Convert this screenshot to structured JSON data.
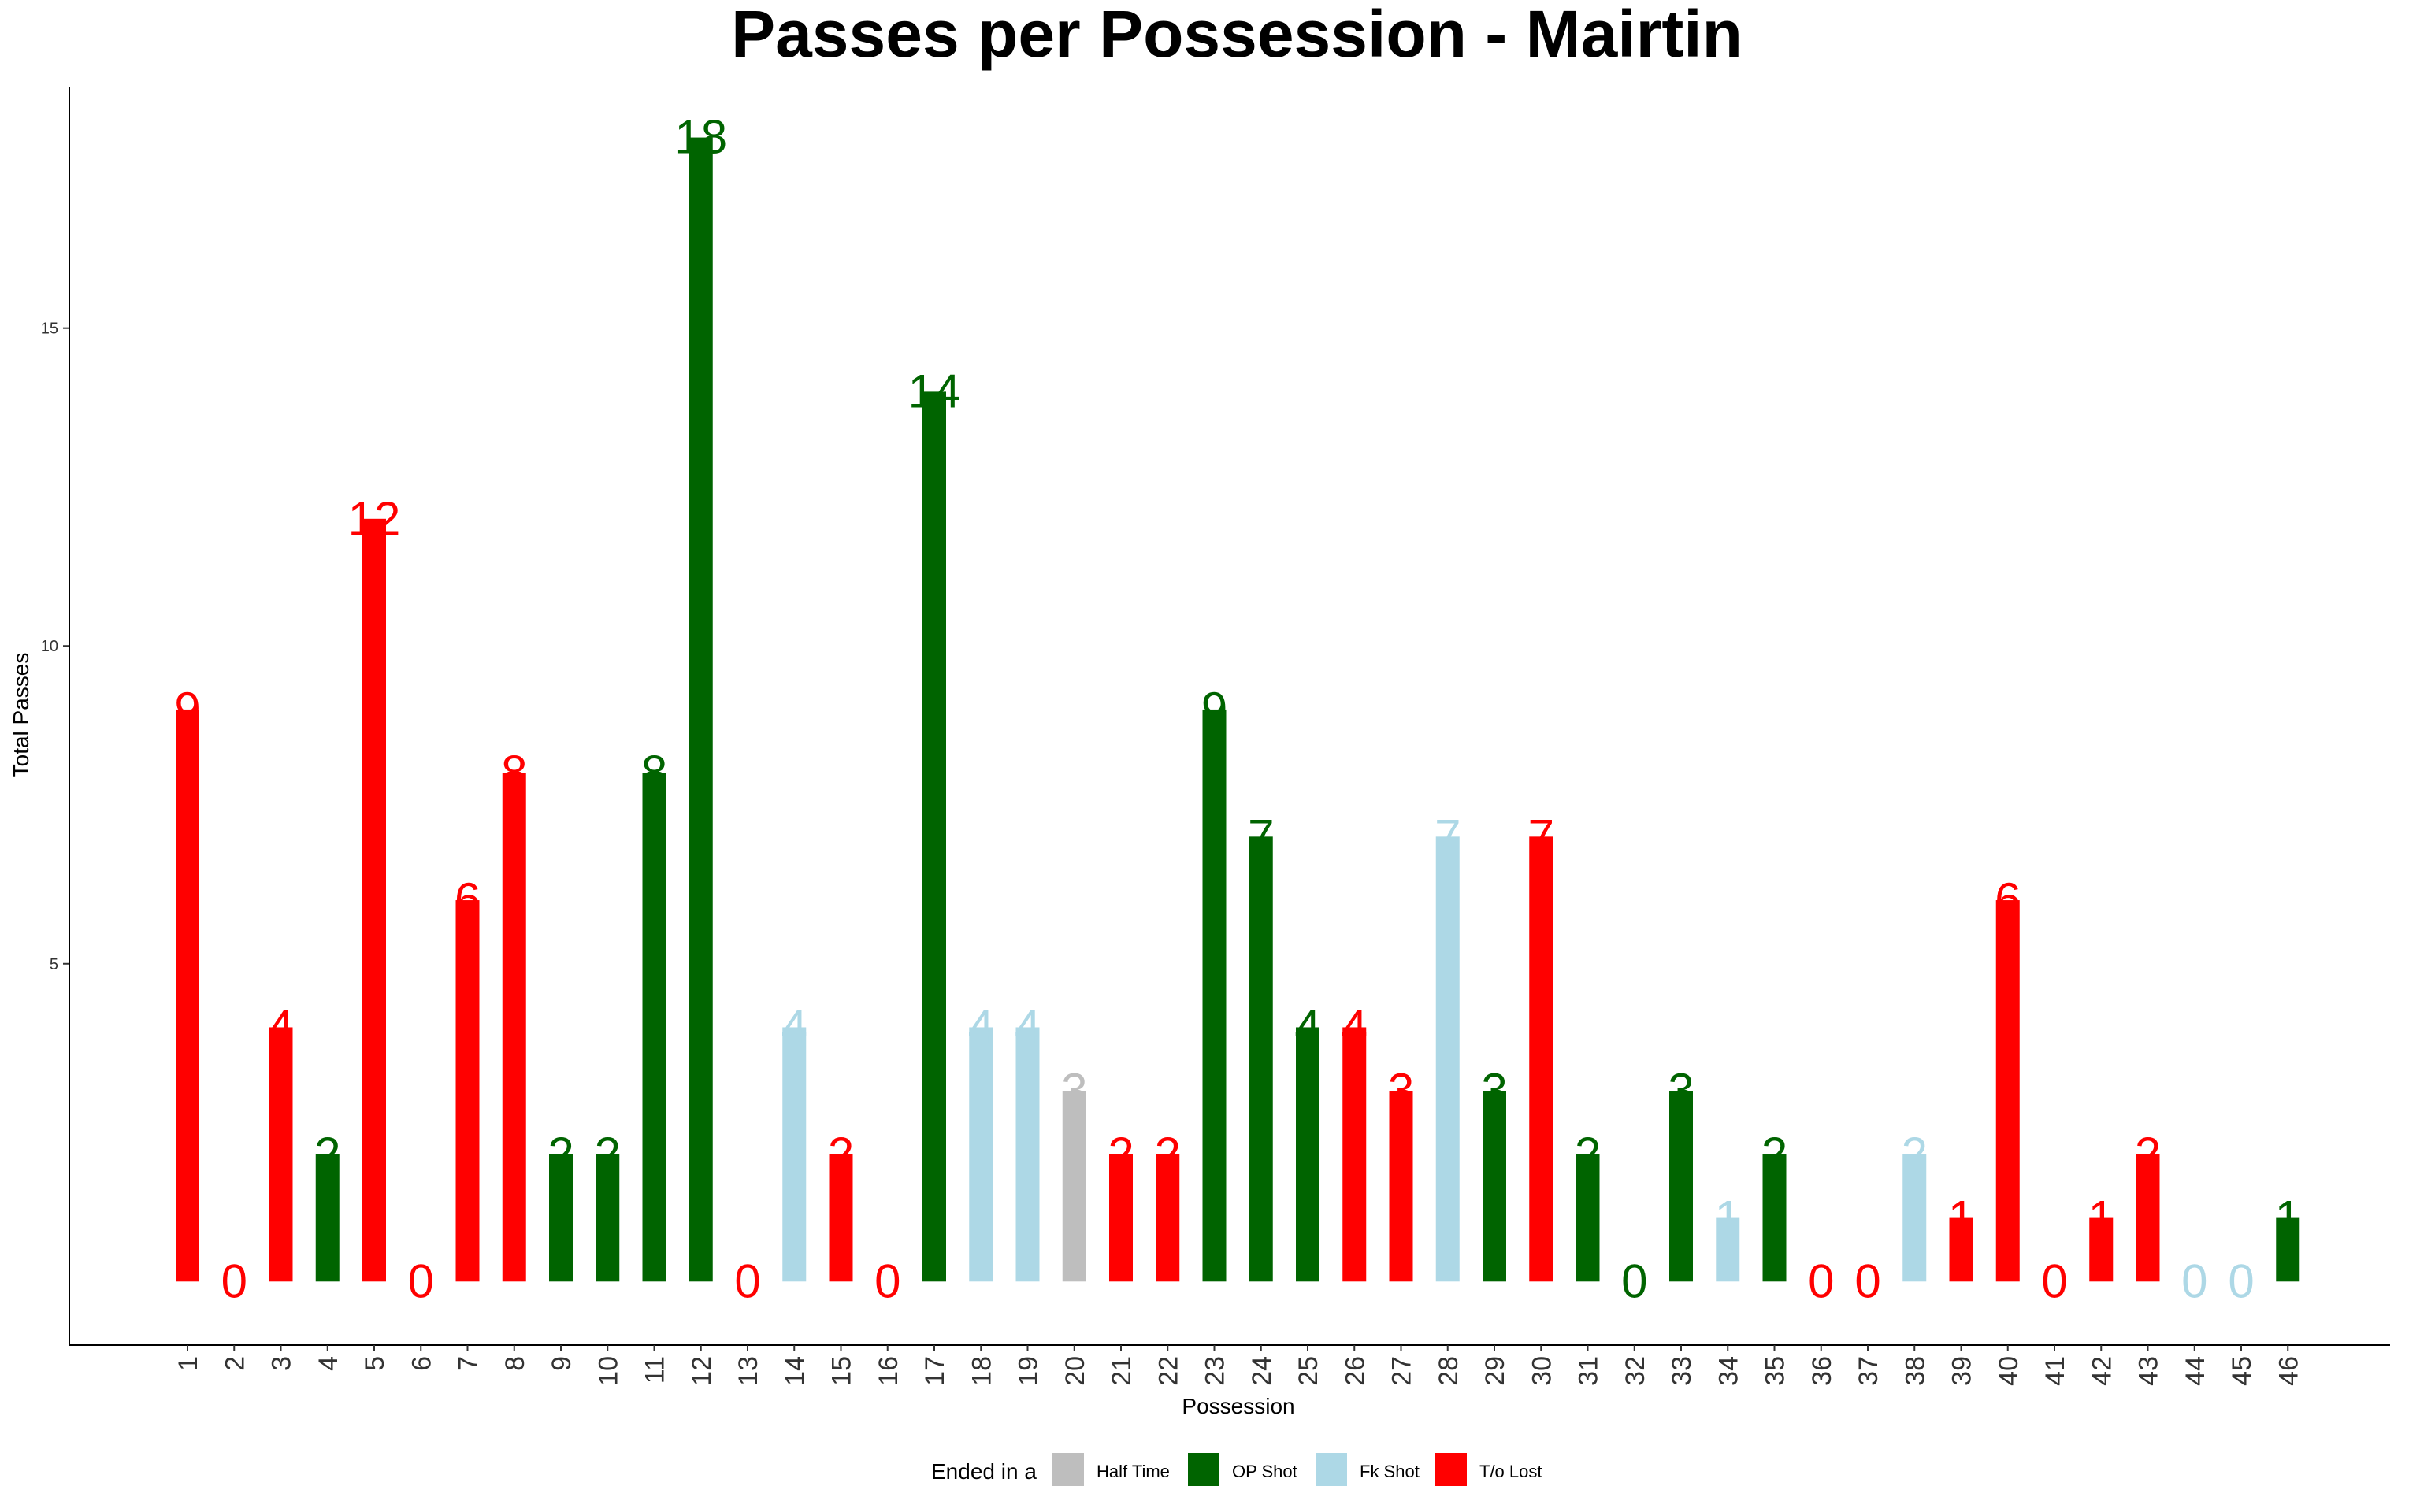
{
  "chart_data": {
    "type": "bar",
    "title": "Passes per Possession - Mairtin",
    "xlabel": "Possession",
    "ylabel": "Total Passes",
    "ylim": [
      -1.0,
      18.8
    ],
    "yticks": [
      5,
      10,
      15
    ],
    "grid": false,
    "legend_position": "bottom",
    "legend_title": "Ended in a",
    "legend": [
      {
        "name": "Half Time",
        "color": "#BEBEBE"
      },
      {
        "name": "OP Shot",
        "color": "#006400"
      },
      {
        "name": "Fk Shot",
        "color": "#ADD8E6"
      },
      {
        "name": "T/o Lost",
        "color": "#FF0000"
      }
    ],
    "categories": [
      "1",
      "2",
      "3",
      "4",
      "5",
      "6",
      "7",
      "8",
      "9",
      "10",
      "11",
      "12",
      "13",
      "14",
      "15",
      "16",
      "17",
      "18",
      "19",
      "20",
      "21",
      "22",
      "23",
      "24",
      "25",
      "26",
      "27",
      "28",
      "29",
      "30",
      "31",
      "32",
      "33",
      "34",
      "35",
      "36",
      "37",
      "38",
      "39",
      "40",
      "41",
      "42",
      "43",
      "44",
      "45",
      "46"
    ],
    "values": [
      9,
      0,
      4,
      2,
      12,
      0,
      6,
      8,
      2,
      2,
      8,
      18,
      0,
      4,
      2,
      0,
      14,
      4,
      4,
      3,
      2,
      2,
      9,
      7,
      4,
      4,
      3,
      7,
      3,
      7,
      2,
      0,
      3,
      1,
      2,
      0,
      0,
      2,
      1,
      6,
      0,
      1,
      2,
      0,
      0,
      1
    ],
    "outcomes": [
      "T/o Lost",
      "T/o Lost",
      "T/o Lost",
      "OP Shot",
      "T/o Lost",
      "T/o Lost",
      "T/o Lost",
      "T/o Lost",
      "OP Shot",
      "OP Shot",
      "OP Shot",
      "OP Shot",
      "T/o Lost",
      "Fk Shot",
      "T/o Lost",
      "T/o Lost",
      "OP Shot",
      "Fk Shot",
      "Fk Shot",
      "Half Time",
      "T/o Lost",
      "T/o Lost",
      "OP Shot",
      "OP Shot",
      "OP Shot",
      "T/o Lost",
      "T/o Lost",
      "Fk Shot",
      "OP Shot",
      "T/o Lost",
      "OP Shot",
      "OP Shot",
      "OP Shot",
      "Fk Shot",
      "OP Shot",
      "T/o Lost",
      "T/o Lost",
      "Fk Shot",
      "T/o Lost",
      "T/o Lost",
      "T/o Lost",
      "T/o Lost",
      "T/o Lost",
      "Fk Shot",
      "Fk Shot",
      "OP Shot"
    ]
  }
}
